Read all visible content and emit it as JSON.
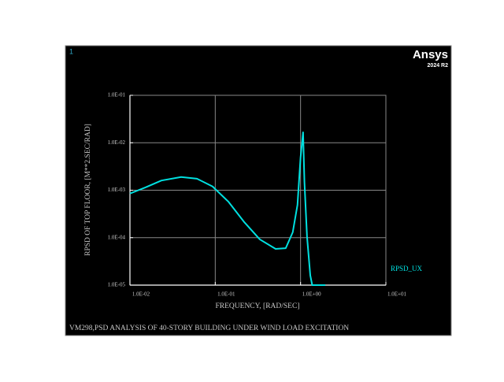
{
  "chart_data": {
    "type": "line",
    "window_label": "1",
    "logo": "Ansys",
    "version": "2024 R2",
    "title": "VM298,PSD ANALYSIS OF 40-STORY BUILDING UNDER WIND LOAD EXCITATION",
    "xlabel": "FREQUENCY, [RAD/SEC]",
    "ylabel": "RPSD OF TOP FLOOR, [M**2.SEC/RAD]",
    "xscale": "log",
    "yscale": "log",
    "grid": true,
    "xlim": [
      0.01,
      10
    ],
    "ylim": [
      1e-05,
      0.1
    ],
    "xticks": [
      {
        "value": 0.01,
        "label": "1.0E-02"
      },
      {
        "value": 0.1,
        "label": "1.0E-01"
      },
      {
        "value": 1,
        "label": "1.0E+00"
      },
      {
        "value": 10,
        "label": "1.0E+01"
      }
    ],
    "yticks": [
      {
        "value": 0.1,
        "label": "1.0E-01"
      },
      {
        "value": 0.01,
        "label": "1.0E-02"
      },
      {
        "value": 0.001,
        "label": "1.0E-03"
      },
      {
        "value": 0.0001,
        "label": "1.0E-04"
      },
      {
        "value": 1e-05,
        "label": "1.0E-05"
      }
    ],
    "x": [
      0.01,
      0.0153,
      0.0234,
      0.0398,
      0.061,
      0.093,
      0.143,
      0.22,
      0.333,
      0.51,
      0.67,
      0.81,
      0.92,
      1.0,
      1.07,
      1.11,
      1.19,
      1.3,
      1.37,
      1.95
    ],
    "series": [
      {
        "name": "RPSD_UX",
        "color": "#00e0e0",
        "values": [
          0.00085,
          0.00115,
          0.0016,
          0.0019,
          0.00175,
          0.0012,
          0.00057,
          0.00021,
          9.2e-05,
          5.8e-05,
          6e-05,
          0.00013,
          0.00049,
          0.0049,
          0.0166,
          0.0015,
          0.000107,
          1.6e-05,
          1e-05,
          1e-05
        ]
      }
    ]
  }
}
